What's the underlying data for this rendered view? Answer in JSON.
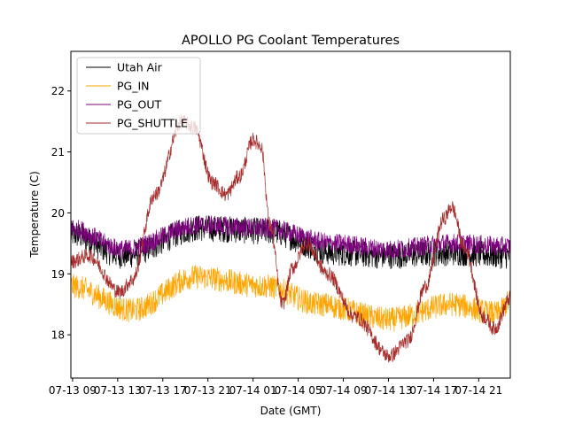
{
  "chart_data": {
    "type": "line",
    "title": "APOLLO PG Coolant Temperatures",
    "xlabel": "Date (GMT)",
    "ylabel": "Temperature (C)",
    "x_units": "hours since 07-13 00:00 GMT",
    "xlim": [
      8.85,
      47.8
    ],
    "ylim": [
      17.29,
      22.65
    ],
    "grid": false,
    "legend_position": "top-left",
    "x_ticks": [
      {
        "value": 9,
        "label": "07-13 09"
      },
      {
        "value": 13,
        "label": "07-13 13"
      },
      {
        "value": 17,
        "label": "07-13 17"
      },
      {
        "value": 21,
        "label": "07-13 21"
      },
      {
        "value": 25,
        "label": "07-14 01"
      },
      {
        "value": 29,
        "label": "07-14 05"
      },
      {
        "value": 33,
        "label": "07-14 09"
      },
      {
        "value": 37,
        "label": "07-14 13"
      },
      {
        "value": 41,
        "label": "07-14 17"
      },
      {
        "value": 45,
        "label": "07-14 21"
      }
    ],
    "y_ticks": [
      {
        "value": 18,
        "label": "18"
      },
      {
        "value": 19,
        "label": "19"
      },
      {
        "value": 20,
        "label": "20"
      },
      {
        "value": 21,
        "label": "21"
      },
      {
        "value": 22,
        "label": "22"
      }
    ],
    "series": [
      {
        "name": "Utah Air",
        "color": "#000000",
        "noise": 0.22,
        "x": [
          8.85,
          13.5,
          20.2,
          26.3,
          32.2,
          37.1,
          42.6,
          47.8
        ],
        "values": [
          19.65,
          19.3,
          19.75,
          19.7,
          19.35,
          19.3,
          19.35,
          19.3
        ]
      },
      {
        "name": "PG_IN",
        "color": "#ffa500",
        "noise": 0.2,
        "x": [
          8.85,
          14.3,
          19.8,
          26.1,
          30.8,
          37.1,
          42.6,
          46.6,
          47.8
        ],
        "values": [
          18.8,
          18.4,
          18.95,
          18.8,
          18.5,
          18.25,
          18.5,
          18.35,
          18.55
        ]
      },
      {
        "name": "PG_OUT",
        "color": "#800080",
        "noise": 0.16,
        "x": [
          8.85,
          13.5,
          20.2,
          26.1,
          32.2,
          37.1,
          42.6,
          47.8
        ],
        "values": [
          19.75,
          19.4,
          19.8,
          19.75,
          19.5,
          19.4,
          19.5,
          19.45
        ]
      },
      {
        "name": "PG_SHUTTLE",
        "color": "#a52a2a",
        "noise": 0.12,
        "x": [
          8.85,
          10.4,
          13.2,
          14.3,
          16.3,
          18.7,
          19.8,
          21.4,
          22.6,
          23.8,
          25.0,
          25.7,
          26.5,
          27.6,
          28.5,
          29.7,
          31.6,
          34.0,
          37.1,
          38.7,
          40.3,
          41.9,
          42.6,
          43.8,
          45.4,
          46.4,
          47.8
        ],
        "values": [
          19.2,
          19.3,
          18.7,
          18.9,
          20.3,
          21.5,
          21.4,
          20.5,
          20.3,
          20.6,
          21.2,
          21.1,
          19.8,
          18.5,
          19.1,
          19.5,
          19.0,
          18.3,
          17.65,
          17.9,
          18.8,
          19.9,
          20.1,
          19.4,
          18.3,
          18.1,
          18.6
        ]
      }
    ]
  }
}
